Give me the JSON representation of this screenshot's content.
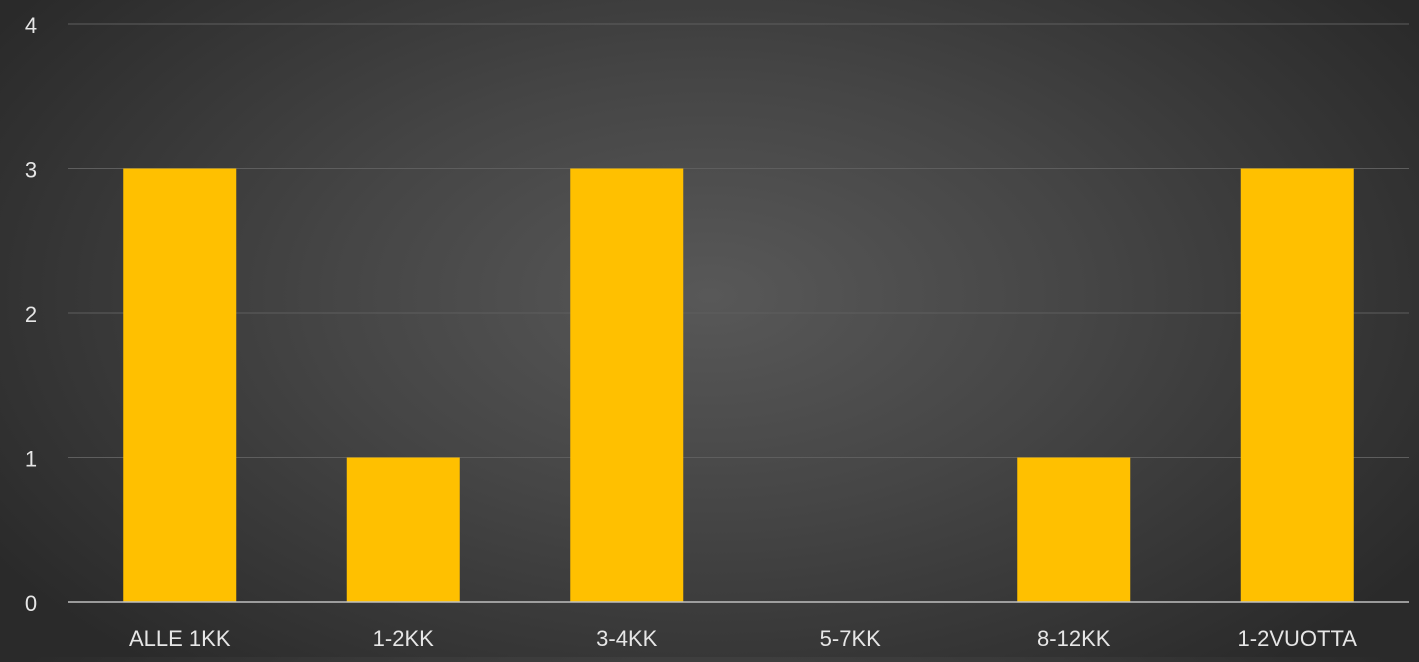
{
  "chart_data": {
    "type": "bar",
    "categories": [
      "ALLE 1KK",
      "1-2KK",
      "3-4KK",
      "5-7KK",
      "8-12KK",
      "1-2VUOTTA"
    ],
    "values": [
      3,
      1,
      3,
      0,
      1,
      3
    ],
    "title": "",
    "xlabel": "",
    "ylabel": "",
    "ylim": [
      0,
      4
    ],
    "yticks": [
      0,
      1,
      2,
      3,
      4
    ],
    "grid": true,
    "legend": "none",
    "colors": {
      "bar": "#FFC000",
      "axis": "#bfbfbf",
      "grid": "#5e5e5e",
      "tick_label": "#e6e6e6",
      "background_center": "#585858",
      "background_edge": "#2a2a2a"
    }
  }
}
